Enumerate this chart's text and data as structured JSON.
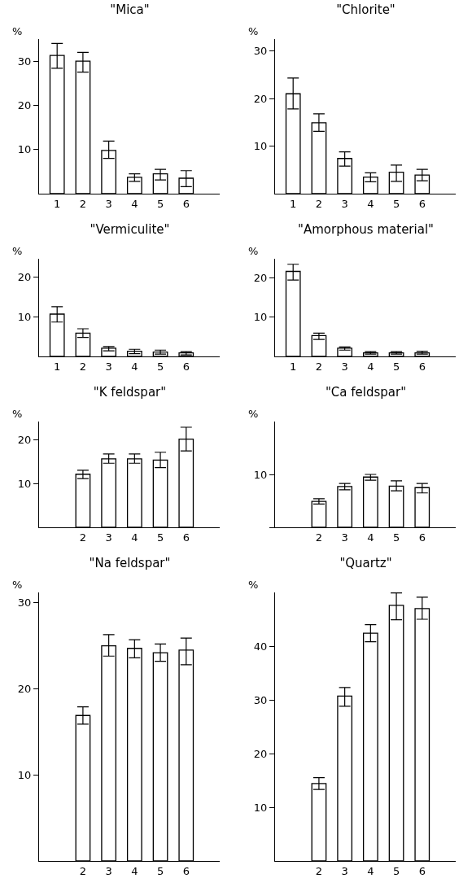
{
  "chart_data": [
    {
      "type": "bar",
      "title": "\"Mica\"",
      "ylabel": "%",
      "color": "#ffffff",
      "categories": [
        "1",
        "2",
        "3",
        "4",
        "5",
        "6"
      ],
      "values": [
        31.3,
        30,
        9.8,
        3.7,
        4.5,
        3.5
      ],
      "errors": [
        [
          28.4,
          34
        ],
        [
          27.5,
          32
        ],
        [
          8,
          11.9
        ],
        [
          2.8,
          4.5
        ],
        [
          3.1,
          5.5
        ],
        [
          1.6,
          5.2
        ]
      ],
      "ylim": [
        0,
        35
      ],
      "yticks": [
        10,
        20,
        30
      ],
      "grid": false,
      "legend": false
    },
    {
      "type": "bar",
      "title": "\"Chlorite\"",
      "ylabel": "%",
      "color": "#ffffff",
      "categories": [
        "1",
        "2",
        "3",
        "4",
        "5",
        "6"
      ],
      "values": [
        21,
        14.9,
        7.4,
        3.5,
        4.5,
        3.9
      ],
      "errors": [
        [
          17.8,
          24.3
        ],
        [
          13.1,
          16.8
        ],
        [
          5.8,
          8.8
        ],
        [
          2.5,
          4.4
        ],
        [
          2.6,
          6
        ],
        [
          2.7,
          5.1
        ]
      ],
      "ylim": [
        0,
        32.5
      ],
      "yticks": [
        10,
        20,
        30
      ],
      "grid": false,
      "legend": false
    },
    {
      "type": "bar",
      "title": "\"Vermiculite\"",
      "ylabel": "%",
      "color": "#ffffff",
      "categories": [
        "1",
        "2",
        "3",
        "4",
        "5",
        "6"
      ],
      "values": [
        10.7,
        5.9,
        2.1,
        1.3,
        1.1,
        0.9
      ],
      "errors": [
        [
          8.7,
          12.6
        ],
        [
          4.8,
          7
        ],
        [
          1.4,
          2.5
        ],
        [
          0.7,
          1.8
        ],
        [
          0.6,
          1.6
        ],
        [
          0.4,
          1.2
        ]
      ],
      "ylim": [
        0,
        24.7
      ],
      "yticks": [
        10,
        20
      ],
      "grid": false,
      "legend": false
    },
    {
      "type": "bar",
      "title": "\"Amorphous material\"",
      "ylabel": "%",
      "color": "#ffffff",
      "categories": [
        "1",
        "2",
        "3",
        "4",
        "5",
        "6"
      ],
      "values": [
        21.6,
        5.3,
        2.1,
        0.9,
        0.9,
        0.9
      ],
      "errors": [
        [
          19.4,
          23.4
        ],
        [
          4.3,
          5.9
        ],
        [
          1.6,
          2.4
        ],
        [
          0.6,
          1.2
        ],
        [
          0.6,
          1.2
        ],
        [
          0.6,
          1.3
        ]
      ],
      "ylim": [
        0,
        24.8
      ],
      "yticks": [
        10,
        20
      ],
      "grid": false,
      "legend": false
    },
    {
      "type": "bar",
      "title": "\"K feldspar\"",
      "ylabel": "%",
      "color": "#ffffff",
      "categories": [
        null,
        "2",
        "3",
        "4",
        "5",
        "6"
      ],
      "values": [
        null,
        12.1,
        15.6,
        15.6,
        15.3,
        20.1
      ],
      "errors": [
        null,
        [
          11.1,
          13
        ],
        [
          14.6,
          16.7
        ],
        [
          14.6,
          16.7
        ],
        [
          13.6,
          17.1
        ],
        [
          17.4,
          22.8
        ]
      ],
      "ylim": [
        0,
        24.1
      ],
      "yticks": [
        10,
        20
      ],
      "grid": false,
      "legend": false
    },
    {
      "type": "bar",
      "title": "\"Ca feldspar\"",
      "ylabel": "%",
      "color": "#ffffff",
      "categories": [
        null,
        "2",
        "3",
        "4",
        "5",
        "6"
      ],
      "values": [
        null,
        4.9,
        7.7,
        9.5,
        7.8,
        7.5
      ],
      "errors": [
        null,
        [
          4.4,
          5.4
        ],
        [
          7.1,
          8.3
        ],
        [
          8.9,
          10
        ],
        [
          6.9,
          8.8
        ],
        [
          6.5,
          8.3
        ]
      ],
      "ylim": [
        0,
        20
      ],
      "yticks": [
        {
          "value": 0,
          "label": null
        },
        10
      ],
      "grid": false,
      "legend": false
    },
    {
      "type": "bar",
      "title": "\"Na feldspar\"",
      "ylabel": "%",
      "color": "#ffffff",
      "categories": [
        null,
        "2",
        "3",
        "4",
        "5",
        "6"
      ],
      "values": [
        null,
        16.9,
        25,
        24.7,
        24.2,
        24.5
      ],
      "errors": [
        null,
        [
          15.9,
          17.9
        ],
        [
          23.8,
          26.3
        ],
        [
          23.6,
          25.7
        ],
        [
          23.2,
          25.2
        ],
        [
          22.8,
          25.9
        ]
      ],
      "ylim": [
        0,
        31.2
      ],
      "yticks": [
        10,
        20,
        30
      ],
      "grid": false,
      "legend": false
    },
    {
      "type": "bar",
      "title": "\"Quartz\"",
      "ylabel": "%",
      "color": "#ffffff",
      "categories": [
        null,
        "2",
        "3",
        "4",
        "5",
        "6"
      ],
      "values": [
        null,
        14.4,
        30.7,
        42.4,
        47.6,
        47
      ],
      "errors": [
        null,
        [
          13.3,
          15.5
        ],
        [
          28.8,
          32.3
        ],
        [
          40.8,
          44
        ],
        [
          44.9,
          49.9
        ],
        [
          45,
          49.1
        ]
      ],
      "ylim": [
        0,
        50
      ],
      "yticks": [
        10,
        20,
        30,
        40
      ],
      "grid": false,
      "legend": false
    }
  ]
}
